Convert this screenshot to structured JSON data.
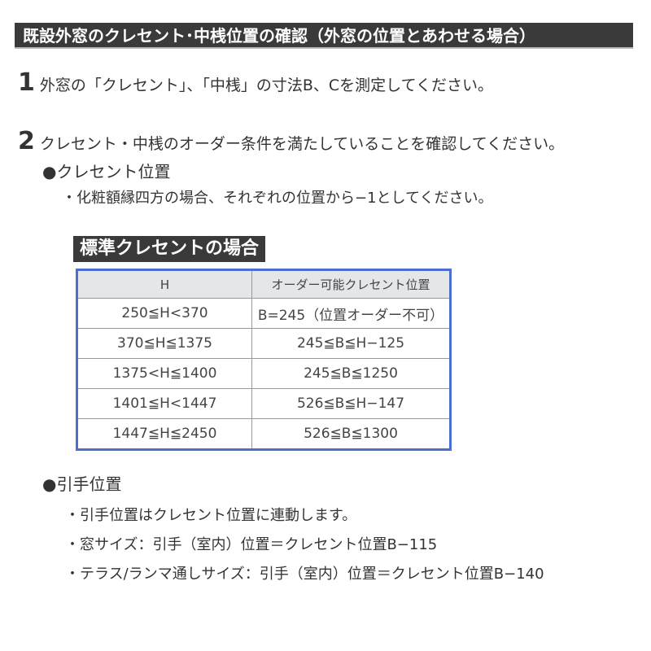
{
  "title": "既設外窓のクレセント･中桟位置の確認（外窓の位置とあわせる場合）",
  "steps": [
    {
      "num": "1",
      "text": "外窓の「クレセント」、「中桟」の寸法B、Cを測定してください。"
    },
    {
      "num": "2",
      "text": "クレセント・中桟のオーダー条件を満たしていることを確認してください。"
    }
  ],
  "crescent": {
    "heading": "●クレセント位置",
    "note": "・化粧額縁四方の場合、それぞれの位置から−1としてください。"
  },
  "table": {
    "title": "標準クレセントの場合",
    "headers": [
      "H",
      "オーダー可能クレセント位置"
    ],
    "rows": [
      [
        "250≦H<370",
        "B=245（位置オーダー不可）"
      ],
      [
        "370≦H≦1375",
        "245≦B≦H−125"
      ],
      [
        "1375<H≦1400",
        "245≦B≦1250"
      ],
      [
        "1401≦H<1447",
        "526≦B≦H−147"
      ],
      [
        "1447≦H≦2450",
        "526≦B≦1300"
      ]
    ],
    "border_color": "#4a6fd0"
  },
  "handle": {
    "heading": "●引手位置",
    "notes": [
      "・引手位置はクレセント位置に連動します。",
      "・窓サイズ：引手（室内）位置＝クレセント位置B−115",
      "・テラス/ランマ通しサイズ：引手（室内）位置＝クレセント位置B−140"
    ]
  }
}
